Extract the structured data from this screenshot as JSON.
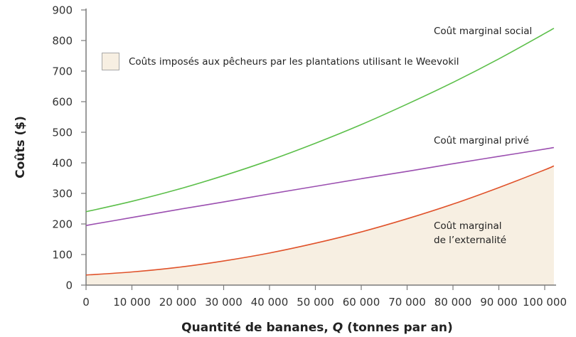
{
  "chart_data": {
    "type": "line",
    "title": "",
    "xlabel": "Quantité de bananes, Q (tonnes par an)",
    "xlabel_parts": {
      "before": "Quantité de bananes, ",
      "italic": "Q",
      "after": " (tonnes par an)"
    },
    "ylabel": "Coûts ($)",
    "xlim": [
      0,
      102000
    ],
    "ylim": [
      0,
      900
    ],
    "grid": false,
    "x_ticks": [
      0,
      10000,
      20000,
      30000,
      40000,
      50000,
      60000,
      70000,
      80000,
      90000,
      100000
    ],
    "x_tick_labels": [
      "0",
      "10 000",
      "20 000",
      "30 000",
      "40 000",
      "50 000",
      "60 000",
      "70 000",
      "80 000",
      "90 000",
      "100 000"
    ],
    "y_ticks": [
      0,
      100,
      200,
      300,
      400,
      500,
      600,
      700,
      800,
      900
    ],
    "y_tick_labels": [
      "0",
      "100",
      "200",
      "300",
      "400",
      "500",
      "600",
      "700",
      "800",
      "900"
    ],
    "x": [
      0,
      10000,
      20000,
      30000,
      40000,
      50000,
      60000,
      70000,
      80000,
      90000,
      100000,
      102000
    ],
    "series": [
      {
        "name": "Coût marginal social",
        "color": "#5cbf4a",
        "values": [
          240,
          274,
          313,
          358,
          408,
          464,
          525,
          592,
          663,
          740,
          823,
          840
        ]
      },
      {
        "name": "Coût marginal privé",
        "color": "#9b4fb0",
        "values": [
          195,
          221,
          247,
          272,
          298,
          323,
          348,
          372,
          397,
          421,
          445,
          450
        ]
      },
      {
        "name": "Coût marginal de l’externalité",
        "color": "#e0522a",
        "values": [
          33,
          43,
          58,
          79,
          105,
          137,
          174,
          217,
          265,
          319,
          377,
          390
        ],
        "fill_below": true,
        "fill_color": "#f7efe2"
      }
    ],
    "legend": {
      "position": "upper-left",
      "entries": [
        {
          "label": "Coûts imposés aux pêcheurs par les plantations utilisant le Weevokil",
          "swatch": "#f7efe2"
        }
      ]
    },
    "annotations": [
      {
        "text": "Coût marginal social",
        "series": 0
      },
      {
        "text": "Coût marginal privé",
        "series": 1
      },
      {
        "text_lines": [
          "Coût marginal",
          "de l’externalité"
        ],
        "series": 2
      }
    ]
  },
  "labels": {
    "social": "Coût marginal social",
    "private": "Coût marginal privé",
    "externality_line1": "Coût marginal",
    "externality_line2": "de l’externalité",
    "legend": "Coûts imposés aux pêcheurs par les plantations utilisant le Weevokil",
    "ylabel": "Coûts ($)",
    "xlabel_before": "Quantité de bananes, ",
    "xlabel_italic": "Q",
    "xlabel_after": " (tonnes par an)"
  },
  "colors": {
    "axis": "#7a7a7a",
    "fill": "#f7efe2",
    "fill_border": "#a8a8a8"
  }
}
